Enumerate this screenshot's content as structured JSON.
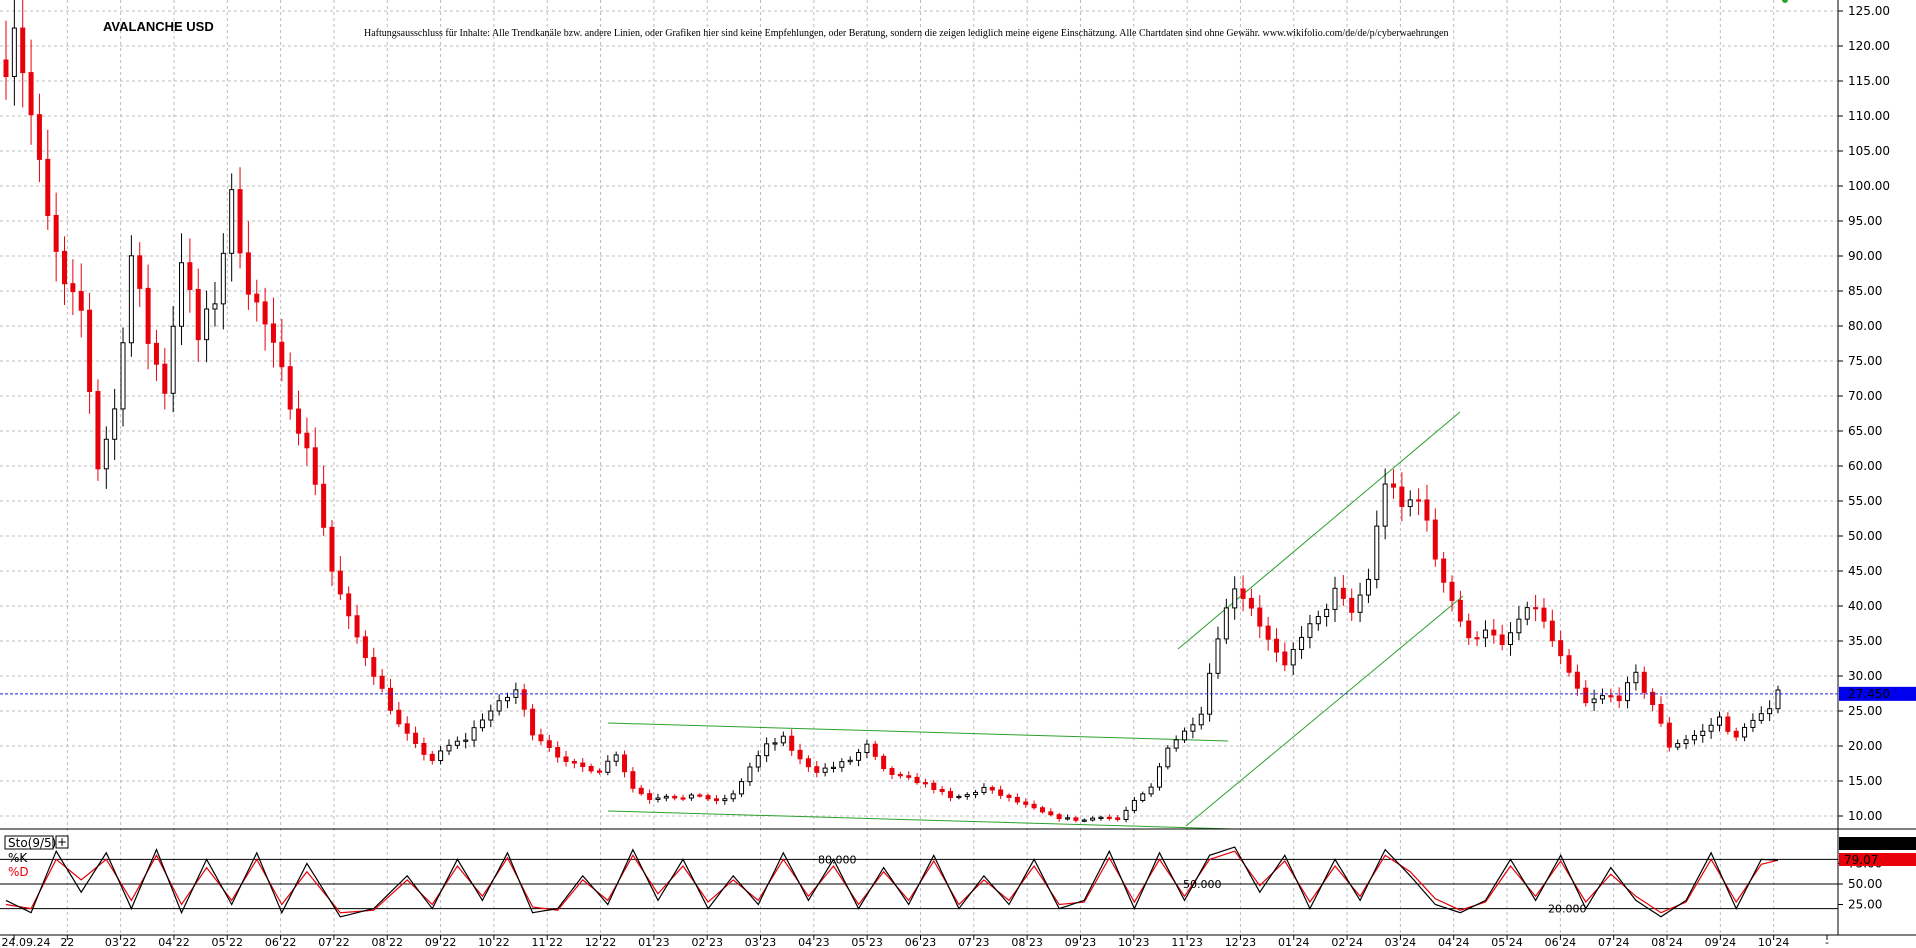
{
  "chart_data": {
    "type": "candlestick",
    "title": "AVALANCHE USD",
    "disclaimer": "Haftungsausschluss für Inhalte: Alle Trendkanäle bzw. andere Linien, oder Grafiken hier sind keine Empfehlungen, oder Beratung, sondern die zeigen lediglich meine eigene Einschätzung. Alle Chartdaten sind ohne Gewähr. www.wikifolio.com/de/de/p/cyberwaehrungen",
    "x_labels": [
      "24.09.24",
      "22",
      "03 22",
      "04 22",
      "05 22",
      "06 22",
      "07 22",
      "08 22",
      "09 22",
      "10 22",
      "11 22",
      "12 22",
      "01 23",
      "02 23",
      "03 23",
      "04 23",
      "05 23",
      "06 23",
      "07 23",
      "08 23",
      "09 23",
      "10 23",
      "11 23",
      "12 23",
      "01 24",
      "02 24",
      "03 24",
      "04 24",
      "05 24",
      "06 24",
      "07 24",
      "08 24",
      "09 24",
      "10 24",
      "-"
    ],
    "y_ticks": [
      "125.00",
      "120.00",
      "115.00",
      "110.00",
      "105.00",
      "100.00",
      "95.00",
      "90.00",
      "85.00",
      "80.00",
      "75.00",
      "70.00",
      "65.00",
      "60.00",
      "55.00",
      "50.00",
      "45.00",
      "40.00",
      "35.00",
      "30.00",
      "25.00",
      "20.00",
      "15.00",
      "10.00"
    ],
    "ylim": [
      5.5,
      126.5
    ],
    "last_price": "27.450",
    "last_price_value": 27.45,
    "up_color": "#000000",
    "down_color": "#e8000b",
    "price_key": [
      [
        0,
        118
      ],
      [
        1,
        124
      ],
      [
        3,
        110
      ],
      [
        5,
        95
      ],
      [
        7,
        85
      ],
      [
        9,
        82
      ],
      [
        11,
        60
      ],
      [
        13,
        68
      ],
      [
        15,
        90
      ],
      [
        17,
        78
      ],
      [
        19,
        71
      ],
      [
        21,
        90
      ],
      [
        23,
        78
      ],
      [
        25,
        84
      ],
      [
        27,
        98
      ],
      [
        29,
        86
      ],
      [
        31,
        80
      ],
      [
        33,
        73
      ],
      [
        35,
        66
      ],
      [
        37,
        58
      ],
      [
        39,
        45
      ],
      [
        41,
        38
      ],
      [
        43,
        33
      ],
      [
        45,
        28
      ],
      [
        47,
        23
      ],
      [
        49,
        20
      ],
      [
        51,
        18
      ],
      [
        53,
        20
      ],
      [
        55,
        21
      ],
      [
        57,
        24
      ],
      [
        59,
        26
      ],
      [
        61,
        28
      ],
      [
        63,
        22
      ],
      [
        65,
        20
      ],
      [
        67,
        17.5
      ],
      [
        69,
        17
      ],
      [
        71,
        16.5
      ],
      [
        73,
        19
      ],
      [
        75,
        14
      ],
      [
        77,
        12.5
      ],
      [
        79,
        13
      ],
      [
        81,
        12.5
      ],
      [
        83,
        13
      ],
      [
        85,
        12
      ],
      [
        87,
        13
      ],
      [
        89,
        17
      ],
      [
        91,
        20
      ],
      [
        93,
        21
      ],
      [
        95,
        18
      ],
      [
        97,
        16.5
      ],
      [
        99,
        17
      ],
      [
        101,
        18
      ],
      [
        103,
        20
      ],
      [
        105,
        16.5
      ],
      [
        107,
        15.5
      ],
      [
        109,
        15
      ],
      [
        111,
        14
      ],
      [
        113,
        12.5
      ],
      [
        115,
        13
      ],
      [
        117,
        14
      ],
      [
        119,
        13
      ],
      [
        121,
        12
      ],
      [
        123,
        11
      ],
      [
        125,
        10
      ],
      [
        127,
        9.6
      ],
      [
        129,
        9.4
      ],
      [
        131,
        10
      ],
      [
        133,
        9.5
      ],
      [
        135,
        12
      ],
      [
        137,
        14
      ],
      [
        139,
        20
      ],
      [
        141,
        22
      ],
      [
        143,
        25
      ],
      [
        145,
        36
      ],
      [
        147,
        43
      ],
      [
        149,
        40
      ],
      [
        151,
        35
      ],
      [
        153,
        31
      ],
      [
        155,
        36
      ],
      [
        157,
        38
      ],
      [
        159,
        42
      ],
      [
        161,
        39
      ],
      [
        163,
        44
      ],
      [
        165,
        58
      ],
      [
        167,
        54
      ],
      [
        169,
        56
      ],
      [
        171,
        47
      ],
      [
        173,
        41
      ],
      [
        175,
        35
      ],
      [
        177,
        37
      ],
      [
        179,
        34
      ],
      [
        181,
        38
      ],
      [
        183,
        40
      ],
      [
        185,
        35
      ],
      [
        187,
        30
      ],
      [
        189,
        26
      ],
      [
        191,
        27
      ],
      [
        193,
        27
      ],
      [
        195,
        30
      ],
      [
        197,
        26
      ],
      [
        199,
        20
      ],
      [
        201,
        21
      ],
      [
        203,
        22
      ],
      [
        205,
        24
      ],
      [
        207,
        21
      ],
      [
        209,
        24
      ],
      [
        211,
        25
      ],
      [
        212,
        27.5
      ]
    ],
    "upper_channel": [
      [
        1178,
        649
      ],
      [
        1460,
        412
      ]
    ],
    "lower_channel": [
      [
        1186,
        826
      ],
      [
        1463,
        596
      ]
    ],
    "wedge_top": [
      [
        608,
        723
      ],
      [
        1228,
        741
      ]
    ],
    "wedge_bottom": [
      [
        608,
        811
      ],
      [
        1233,
        829
      ]
    ],
    "stochastic": {
      "label": "Sto(9/5)",
      "k_label": "%K",
      "d_label": "%D",
      "k_value": "79.20",
      "d_value": "79.07",
      "levels": [
        "80.000",
        "50.000",
        "20.000"
      ],
      "ticks": [
        "75.00",
        "50.00",
        "25.00"
      ],
      "k_color": "#000000",
      "d_color": "#e8000b",
      "k_key": [
        [
          0,
          30
        ],
        [
          3,
          15
        ],
        [
          6,
          90
        ],
        [
          9,
          40
        ],
        [
          12,
          88
        ],
        [
          15,
          20
        ],
        [
          18,
          92
        ],
        [
          21,
          15
        ],
        [
          24,
          80
        ],
        [
          27,
          25
        ],
        [
          30,
          88
        ],
        [
          33,
          15
        ],
        [
          36,
          75
        ],
        [
          40,
          10
        ],
        [
          44,
          20
        ],
        [
          48,
          60
        ],
        [
          51,
          20
        ],
        [
          54,
          80
        ],
        [
          57,
          30
        ],
        [
          60,
          88
        ],
        [
          63,
          15
        ],
        [
          66,
          20
        ],
        [
          69,
          60
        ],
        [
          72,
          25
        ],
        [
          75,
          92
        ],
        [
          78,
          30
        ],
        [
          81,
          80
        ],
        [
          84,
          20
        ],
        [
          87,
          60
        ],
        [
          90,
          25
        ],
        [
          93,
          88
        ],
        [
          96,
          30
        ],
        [
          99,
          80
        ],
        [
          102,
          20
        ],
        [
          105,
          70
        ],
        [
          108,
          25
        ],
        [
          111,
          85
        ],
        [
          114,
          20
        ],
        [
          117,
          60
        ],
        [
          120,
          25
        ],
        [
          123,
          80
        ],
        [
          126,
          20
        ],
        [
          129,
          30
        ],
        [
          132,
          90
        ],
        [
          135,
          20
        ],
        [
          138,
          88
        ],
        [
          141,
          30
        ],
        [
          144,
          85
        ],
        [
          147,
          95
        ],
        [
          150,
          40
        ],
        [
          153,
          85
        ],
        [
          156,
          20
        ],
        [
          159,
          80
        ],
        [
          162,
          30
        ],
        [
          165,
          92
        ],
        [
          168,
          60
        ],
        [
          171,
          25
        ],
        [
          174,
          15
        ],
        [
          177,
          30
        ],
        [
          180,
          80
        ],
        [
          183,
          30
        ],
        [
          186,
          85
        ],
        [
          189,
          20
        ],
        [
          192,
          70
        ],
        [
          195,
          30
        ],
        [
          198,
          10
        ],
        [
          201,
          30
        ],
        [
          204,
          88
        ],
        [
          207,
          20
        ],
        [
          210,
          80
        ],
        [
          212,
          79
        ]
      ],
      "d_key": [
        [
          0,
          25
        ],
        [
          3,
          20
        ],
        [
          6,
          80
        ],
        [
          9,
          55
        ],
        [
          12,
          80
        ],
        [
          15,
          30
        ],
        [
          18,
          85
        ],
        [
          21,
          25
        ],
        [
          24,
          70
        ],
        [
          27,
          30
        ],
        [
          30,
          80
        ],
        [
          33,
          25
        ],
        [
          36,
          65
        ],
        [
          40,
          15
        ],
        [
          44,
          18
        ],
        [
          48,
          55
        ],
        [
          51,
          25
        ],
        [
          54,
          72
        ],
        [
          57,
          35
        ],
        [
          60,
          82
        ],
        [
          63,
          22
        ],
        [
          66,
          18
        ],
        [
          69,
          55
        ],
        [
          72,
          30
        ],
        [
          75,
          85
        ],
        [
          78,
          38
        ],
        [
          81,
          72
        ],
        [
          84,
          28
        ],
        [
          87,
          55
        ],
        [
          90,
          30
        ],
        [
          93,
          80
        ],
        [
          96,
          35
        ],
        [
          99,
          72
        ],
        [
          102,
          25
        ],
        [
          105,
          65
        ],
        [
          108,
          30
        ],
        [
          111,
          78
        ],
        [
          114,
          25
        ],
        [
          117,
          55
        ],
        [
          120,
          30
        ],
        [
          123,
          72
        ],
        [
          126,
          25
        ],
        [
          129,
          28
        ],
        [
          132,
          82
        ],
        [
          135,
          28
        ],
        [
          138,
          80
        ],
        [
          141,
          35
        ],
        [
          144,
          80
        ],
        [
          147,
          90
        ],
        [
          150,
          48
        ],
        [
          153,
          78
        ],
        [
          156,
          28
        ],
        [
          159,
          72
        ],
        [
          162,
          35
        ],
        [
          165,
          85
        ],
        [
          168,
          65
        ],
        [
          171,
          32
        ],
        [
          174,
          18
        ],
        [
          177,
          28
        ],
        [
          180,
          72
        ],
        [
          183,
          35
        ],
        [
          186,
          78
        ],
        [
          189,
          28
        ],
        [
          192,
          62
        ],
        [
          195,
          35
        ],
        [
          198,
          15
        ],
        [
          201,
          28
        ],
        [
          204,
          80
        ],
        [
          207,
          28
        ],
        [
          210,
          74
        ],
        [
          212,
          79
        ]
      ]
    }
  }
}
